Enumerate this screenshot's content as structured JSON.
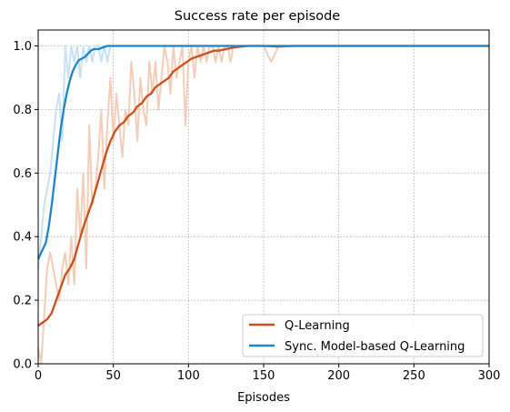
{
  "chart_data": {
    "type": "line",
    "title": "Success rate per episode",
    "xlabel": "Episodes",
    "ylabel": "",
    "xlim": [
      0,
      300
    ],
    "ylim": [
      0,
      1.05
    ],
    "xticks": [
      0,
      50,
      100,
      150,
      200,
      250,
      300
    ],
    "xtick_labels": [
      "0",
      "50",
      "100",
      "150",
      "200",
      "250",
      "300"
    ],
    "yticks": [
      0,
      0.2,
      0.4,
      0.6,
      0.8,
      1.0
    ],
    "ytick_labels": [
      "0.0",
      "0.2",
      "0.4",
      "0.6",
      "0.8",
      "1.0"
    ],
    "grid": true,
    "legend_position": "lower-right",
    "series": [
      {
        "name": "Q-Learning",
        "color": "#c8501e",
        "raw_color": "#f3cdb8",
        "smoothed": {
          "x": [
            0,
            3,
            6,
            9,
            12,
            15,
            18,
            21,
            24,
            27,
            30,
            33,
            36,
            39,
            42,
            45,
            48,
            51,
            54,
            57,
            60,
            63,
            66,
            69,
            72,
            75,
            78,
            81,
            84,
            87,
            90,
            93,
            96,
            99,
            102,
            105,
            108,
            111,
            114,
            117,
            120,
            125,
            130,
            135,
            140,
            150,
            160,
            170,
            180,
            300
          ],
          "y": [
            0.12,
            0.13,
            0.14,
            0.16,
            0.2,
            0.24,
            0.28,
            0.3,
            0.33,
            0.38,
            0.43,
            0.47,
            0.51,
            0.56,
            0.61,
            0.66,
            0.7,
            0.73,
            0.75,
            0.76,
            0.78,
            0.79,
            0.81,
            0.82,
            0.84,
            0.85,
            0.87,
            0.88,
            0.89,
            0.9,
            0.92,
            0.93,
            0.94,
            0.95,
            0.96,
            0.965,
            0.97,
            0.975,
            0.98,
            0.985,
            0.985,
            0.99,
            0.995,
            0.998,
            1.0,
            1.0,
            0.998,
            1.0,
            1.0,
            1.0
          ]
        },
        "raw": {
          "x": [
            0,
            2,
            4,
            6,
            8,
            10,
            12,
            14,
            16,
            18,
            20,
            22,
            24,
            26,
            28,
            30,
            32,
            34,
            36,
            38,
            40,
            42,
            44,
            46,
            48,
            50,
            52,
            54,
            56,
            58,
            60,
            62,
            64,
            66,
            68,
            70,
            72,
            74,
            76,
            78,
            80,
            82,
            84,
            86,
            88,
            90,
            92,
            94,
            96,
            98,
            100,
            102,
            104,
            106,
            108,
            110,
            112,
            114,
            116,
            118,
            120,
            122,
            124,
            126,
            128,
            130,
            135,
            140,
            145,
            150,
            155,
            160,
            165,
            170,
            300
          ],
          "y": [
            0.05,
            0.0,
            0.15,
            0.3,
            0.35,
            0.3,
            0.25,
            0.2,
            0.3,
            0.35,
            0.25,
            0.4,
            0.25,
            0.55,
            0.4,
            0.6,
            0.3,
            0.75,
            0.5,
            0.55,
            0.65,
            0.8,
            0.55,
            0.75,
            0.9,
            0.7,
            0.85,
            0.75,
            0.65,
            0.8,
            0.75,
            0.95,
            0.85,
            0.7,
            0.9,
            0.8,
            0.75,
            0.95,
            0.85,
            0.95,
            0.8,
            0.9,
            1.0,
            0.95,
            0.85,
            1.0,
            0.9,
            0.95,
            1.0,
            0.75,
            0.95,
            1.0,
            0.9,
            1.0,
            0.95,
            1.0,
            0.95,
            1.0,
            1.0,
            0.95,
            1.0,
            0.95,
            1.0,
            1.0,
            0.95,
            1.0,
            1.0,
            1.0,
            1.0,
            1.0,
            0.95,
            1.0,
            1.0,
            1.0,
            1.0
          ]
        }
      },
      {
        "name": "Sync. Model-based Q-Learning",
        "color": "#1f85c4",
        "raw_color": "#c6e2f4",
        "smoothed": {
          "x": [
            0,
            3,
            5,
            7,
            9,
            11,
            13,
            15,
            17,
            19,
            21,
            23,
            25,
            27,
            29,
            31,
            33,
            35,
            37,
            40,
            43,
            46,
            50,
            55,
            60,
            300
          ],
          "y": [
            0.33,
            0.36,
            0.38,
            0.43,
            0.5,
            0.58,
            0.66,
            0.74,
            0.8,
            0.85,
            0.89,
            0.92,
            0.94,
            0.955,
            0.96,
            0.965,
            0.975,
            0.985,
            0.99,
            0.99,
            0.995,
            1.0,
            1.0,
            1.0,
            1.0,
            1.0
          ]
        },
        "raw": {
          "x": [
            0,
            2,
            4,
            6,
            8,
            10,
            12,
            14,
            16,
            18,
            20,
            22,
            24,
            26,
            28,
            30,
            32,
            34,
            36,
            38,
            40,
            42,
            44,
            46,
            48,
            50,
            55,
            60,
            300
          ],
          "y": [
            0.3,
            0.4,
            0.5,
            0.55,
            0.6,
            0.7,
            0.8,
            0.85,
            0.7,
            1.0,
            0.9,
            1.0,
            0.95,
            1.0,
            0.9,
            1.0,
            0.95,
            1.0,
            0.95,
            1.0,
            1.0,
            0.95,
            1.0,
            0.95,
            1.0,
            1.0,
            1.0,
            1.0,
            1.0
          ]
        }
      }
    ]
  }
}
